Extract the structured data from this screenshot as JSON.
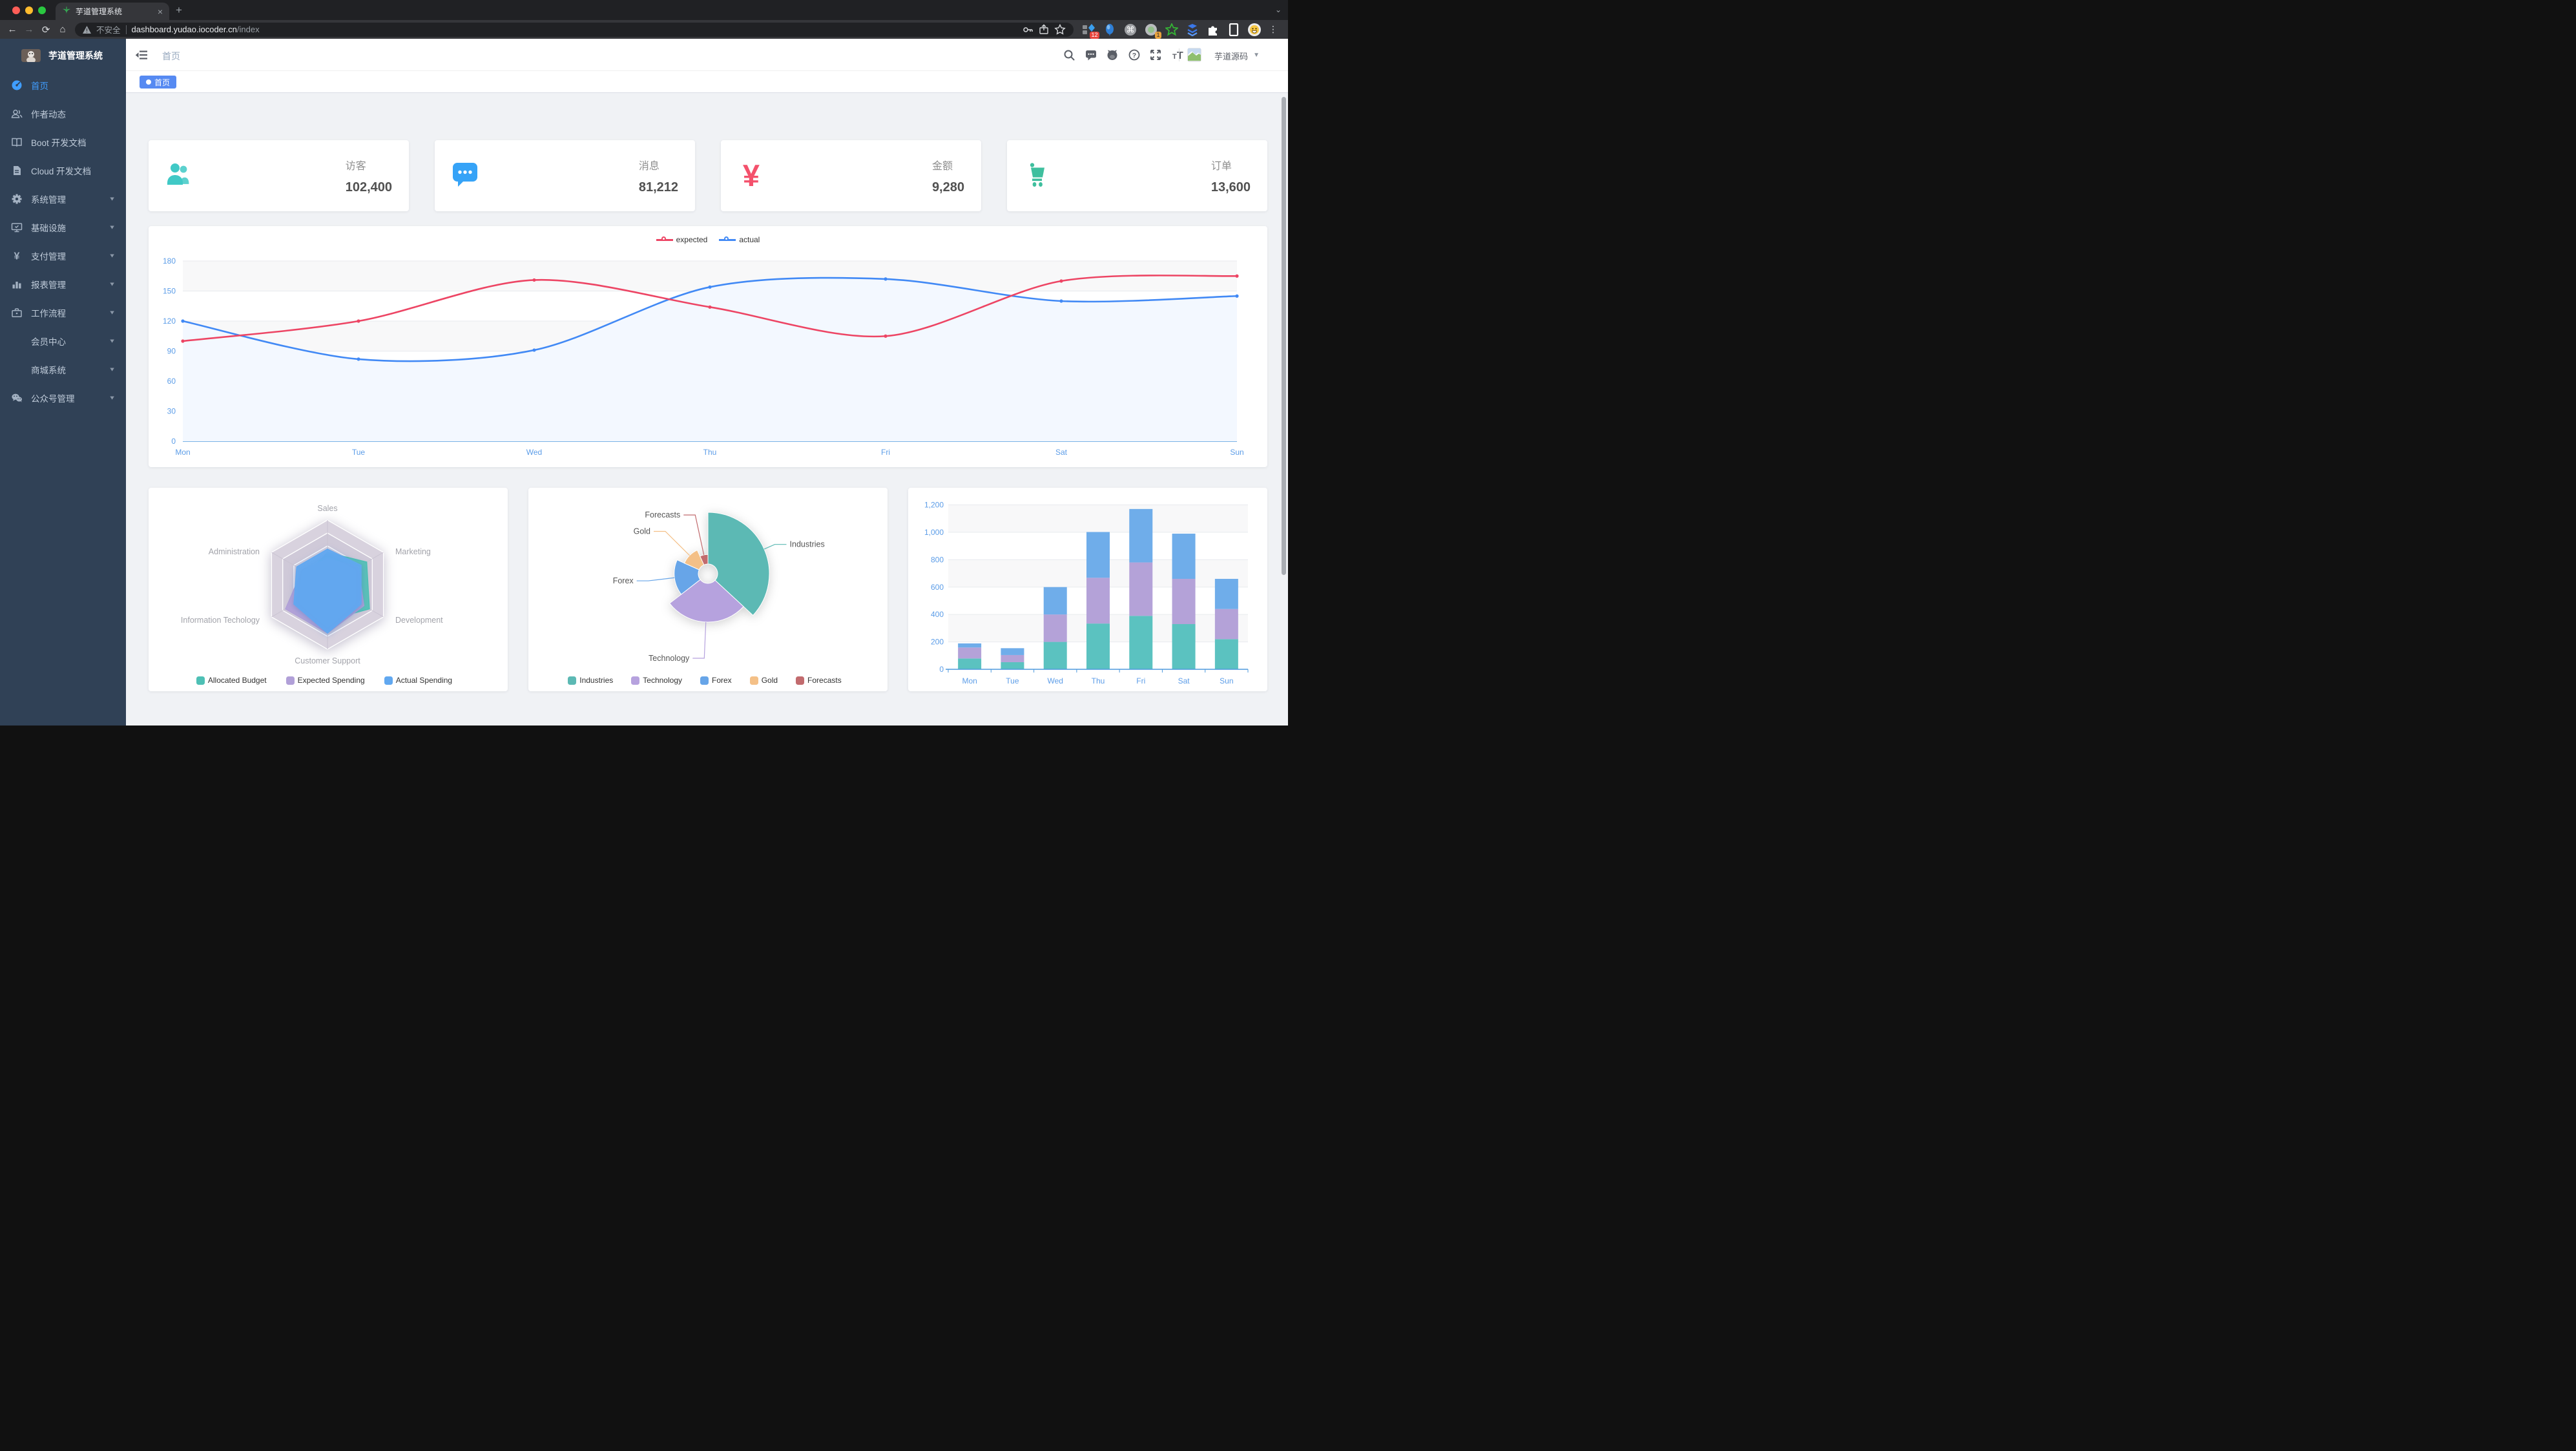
{
  "browser": {
    "tab": {
      "title": "芋道管理系统",
      "close_label": "×"
    },
    "new_tab_label": "+",
    "tab_search_label": "⌄",
    "nav": {
      "back": "←",
      "forward": "→",
      "reload": "⟳",
      "home": "⌂"
    },
    "address": {
      "security": "不安全",
      "host": "dashboard.yudao.iocoder.cn",
      "path": "/index"
    },
    "extensions": [
      {
        "name": "blocks-diamond-extension-icon",
        "badge": "12"
      },
      {
        "name": "balloon-extension-icon"
      },
      {
        "name": "command-extension-icon"
      },
      {
        "name": "camera-dot-extension-icon",
        "badge": "1"
      },
      {
        "name": "green-star-extension-icon"
      },
      {
        "name": "blue-chevrons-extension-icon"
      },
      {
        "name": "puzzle-extension-icon"
      },
      {
        "name": "reader-extension-icon"
      },
      {
        "name": "emoji-avatar-icon"
      }
    ],
    "menu_dots": "⋮"
  },
  "sidebar": {
    "title": "芋道管理系统",
    "items": [
      {
        "label": "首页",
        "icon": "dashboard",
        "active": true,
        "children": false
      },
      {
        "label": "作者动态",
        "icon": "people",
        "children": false
      },
      {
        "label": "Boot 开发文档",
        "icon": "book",
        "children": false
      },
      {
        "label": "Cloud 开发文档",
        "icon": "document",
        "children": false
      },
      {
        "label": "系统管理",
        "icon": "gear",
        "children": true
      },
      {
        "label": "基础设施",
        "icon": "monitor",
        "children": true
      },
      {
        "label": "支付管理",
        "icon": "yen",
        "children": true
      },
      {
        "label": "报表管理",
        "icon": "chart",
        "children": true
      },
      {
        "label": "工作流程",
        "icon": "briefcase",
        "children": true
      },
      {
        "label": "会员中心",
        "icon": "",
        "children": true
      },
      {
        "label": "商城系统",
        "icon": "",
        "children": true
      },
      {
        "label": "公众号管理",
        "icon": "wechat",
        "children": true
      }
    ]
  },
  "navbar": {
    "breadcrumb": "首页",
    "username": "芋道源码",
    "icons": [
      "search-icon",
      "chat-icon",
      "github-icon",
      "help-icon",
      "fullscreen-icon",
      "fontsize-icon"
    ]
  },
  "tags": [
    {
      "label": "首页",
      "active": true
    }
  ],
  "stat_cards": [
    {
      "label": "访客",
      "value": "102,400",
      "icon": "people2",
      "color": "#40c9c6"
    },
    {
      "label": "消息",
      "value": "81,212",
      "icon": "message",
      "color": "#36a3f7"
    },
    {
      "label": "金额",
      "value": "9,280",
      "icon": "money",
      "color": "#f4516c"
    },
    {
      "label": "订单",
      "value": "13,600",
      "icon": "cart",
      "color": "#3fbf9e"
    }
  ],
  "chart_data": [
    {
      "type": "line",
      "x": [
        "Mon",
        "Tue",
        "Wed",
        "Thu",
        "Fri",
        "Sat",
        "Sun"
      ],
      "yticks": [
        0,
        30,
        60,
        90,
        120,
        150,
        180
      ],
      "ylim": [
        0,
        180
      ],
      "legend_position": "top",
      "grid": true,
      "series": [
        {
          "name": "expected",
          "color": "#ed4564",
          "values": [
            100,
            120,
            161,
            134,
            105,
            160,
            165
          ]
        },
        {
          "name": "actual",
          "color": "#4189f5",
          "area": "#f3f8ff",
          "values": [
            120,
            82,
            91,
            154,
            162,
            140,
            145
          ]
        }
      ]
    },
    {
      "type": "radar",
      "shape": "hexagon",
      "legend_position": "bottom",
      "indicators": [
        {
          "name": "Sales",
          "max": 10000
        },
        {
          "name": "Administration",
          "max": 20000
        },
        {
          "name": "Information Techology",
          "max": 20000
        },
        {
          "name": "Customer Support",
          "max": 20000
        },
        {
          "name": "Development",
          "max": 20000
        },
        {
          "name": "Marketing",
          "max": 20000
        }
      ],
      "series": [
        {
          "name": "Allocated Budget",
          "color": "#4ec0b5",
          "values": [
            5000,
            7000,
            12000,
            11000,
            15000,
            14000
          ]
        },
        {
          "name": "Expected Spending",
          "color": "#b1a0d8",
          "values": [
            4000,
            9000,
            15000,
            15000,
            13000,
            11000
          ]
        },
        {
          "name": "Actual Spending",
          "color": "#61a8f0",
          "values": [
            5500,
            11000,
            12000,
            15000,
            12000,
            12000
          ]
        }
      ]
    },
    {
      "type": "pie",
      "rose": true,
      "radius": [
        15,
        95
      ],
      "legend_position": "bottom",
      "items": [
        {
          "name": "Industries",
          "value": 320,
          "color": "#5cb9b4"
        },
        {
          "name": "Technology",
          "value": 240,
          "color": "#b6a2de"
        },
        {
          "name": "Forex",
          "value": 149,
          "color": "#67a5e8"
        },
        {
          "name": "Gold",
          "value": 100,
          "color": "#f4c087"
        },
        {
          "name": "Forecasts",
          "value": 59,
          "color": "#c26b6e"
        }
      ]
    },
    {
      "type": "bar",
      "stacked": true,
      "categories": [
        "Mon",
        "Tue",
        "Wed",
        "Thu",
        "Fri",
        "Sat",
        "Sun"
      ],
      "yticks": [
        "0",
        "200",
        "400",
        "600",
        "800",
        "1,000",
        "1,200"
      ],
      "ylim": [
        0,
        1200
      ],
      "series": [
        {
          "color": "#5bc2c0",
          "values": [
            79,
            52,
            200,
            334,
            390,
            330,
            220
          ]
        },
        {
          "color": "#b4a2d8",
          "values": [
            80,
            52,
            200,
            334,
            390,
            330,
            220
          ]
        },
        {
          "color": "#6fadea",
          "values": [
            30,
            50,
            200,
            334,
            390,
            330,
            220
          ]
        }
      ]
    }
  ]
}
